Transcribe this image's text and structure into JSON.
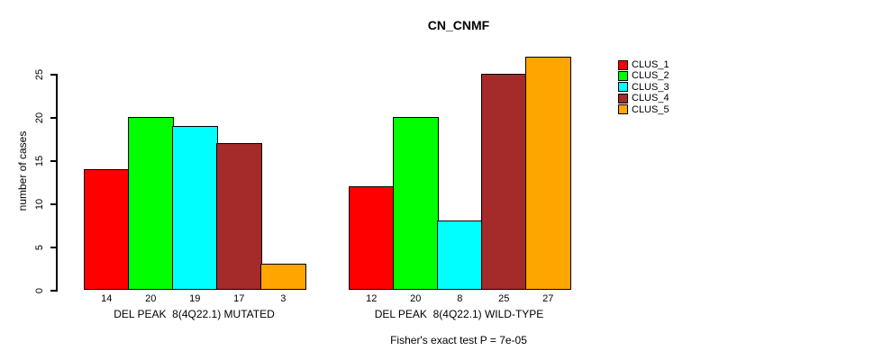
{
  "title": "CN_CNMF",
  "chart_data": {
    "type": "bar",
    "title": "CN_CNMF",
    "ylabel": "number of cases",
    "xlabel": "",
    "ylim": [
      0,
      27
    ],
    "yticks": [
      0,
      5,
      10,
      15,
      20,
      25
    ],
    "grid": false,
    "background": "#ffffff",
    "axis_color": "#000000",
    "legend_position": "right",
    "categories": [
      "DEL PEAK  8(4Q22.1) MUTATED",
      "DEL PEAK  8(4Q22.1) WILD-TYPE"
    ],
    "series": [
      {
        "name": "CLUS_1",
        "color": "#FF0000",
        "values": [
          14,
          12
        ]
      },
      {
        "name": "CLUS_2",
        "color": "#00FF00",
        "values": [
          20,
          20
        ]
      },
      {
        "name": "CLUS_3",
        "color": "#00FFFF",
        "values": [
          19,
          8
        ]
      },
      {
        "name": "CLUS_4",
        "color": "#A52A2A",
        "values": [
          17,
          25
        ]
      },
      {
        "name": "CLUS_5",
        "color": "#FFA500",
        "values": [
          3,
          27
        ]
      }
    ],
    "bar_value_labels": [
      [
        "14",
        "20",
        "19",
        "17",
        "3"
      ],
      [
        "12",
        "20",
        "8",
        "25",
        "27"
      ]
    ],
    "annotation": "Fisher's exact test P = 7e-05"
  }
}
